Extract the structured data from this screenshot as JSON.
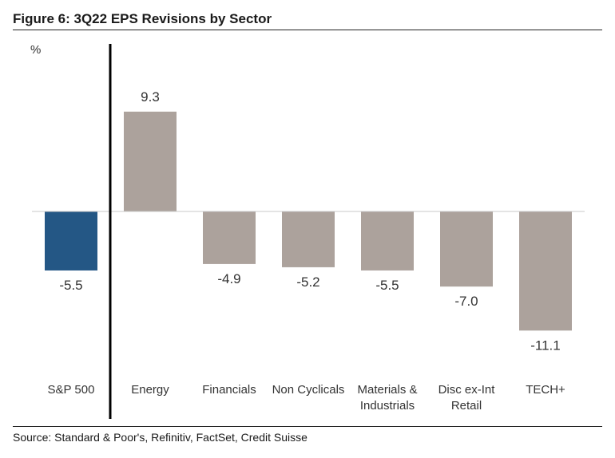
{
  "title": "Figure 6: 3Q22 EPS Revisions by Sector",
  "source": "Source: Standard & Poor's, Refinitiv, FactSet, Credit Suisse",
  "colors": {
    "highlight": "#245785",
    "bars": "#aca29c",
    "text": "#333333",
    "axis": "#000000"
  },
  "chart_data": {
    "type": "bar",
    "title": "Figure 6: 3Q22 EPS Revisions by Sector",
    "ylabel": "%",
    "xlabel": "",
    "ylim": [
      -12.5,
      11.5
    ],
    "grid": false,
    "categories": [
      [
        "S&P 500"
      ],
      [
        "Energy"
      ],
      [
        "Financials"
      ],
      [
        "Non Cyclicals"
      ],
      [
        "Materials &",
        "Industrials"
      ],
      [
        "Disc ex-Int",
        "Retail"
      ],
      [
        "TECH+"
      ]
    ],
    "values": [
      -5.5,
      9.3,
      -4.9,
      -5.2,
      -5.5,
      -7.0,
      -11.1
    ],
    "value_labels": [
      "-5.5",
      "9.3",
      "-4.9",
      "-5.2",
      "-5.5",
      "-7.0",
      "-11.1"
    ],
    "highlight_index": 0
  }
}
